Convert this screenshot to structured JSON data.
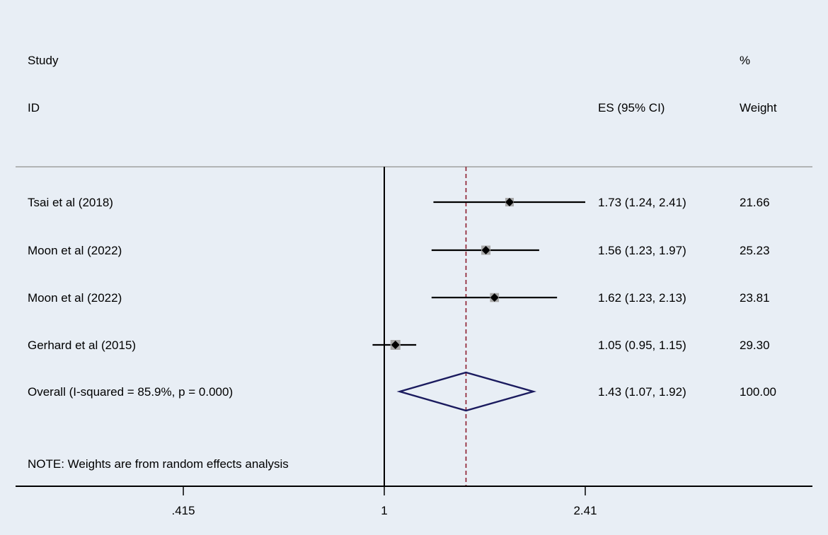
{
  "chart_data": {
    "type": "forest",
    "scale": "log",
    "header": {
      "study_line1": "Study",
      "study_line2": "ID",
      "es_label": "ES (95% CI)",
      "weight_line1": "%",
      "weight_line2": "Weight"
    },
    "studies": [
      {
        "id": "Tsai et al (2018)",
        "es": 1.73,
        "lo": 1.24,
        "hi": 2.41,
        "es_text": "1.73 (1.24, 2.41)",
        "weight": 21.66,
        "weight_text": "21.66"
      },
      {
        "id": "Moon et al (2022)",
        "es": 1.56,
        "lo": 1.23,
        "hi": 1.97,
        "es_text": "1.56 (1.23, 1.97)",
        "weight": 25.23,
        "weight_text": "25.23"
      },
      {
        "id": "Moon et al (2022)",
        "es": 1.62,
        "lo": 1.23,
        "hi": 2.13,
        "es_text": "1.62 (1.23, 2.13)",
        "weight": 23.81,
        "weight_text": "23.81"
      },
      {
        "id": "Gerhard et al (2015)",
        "es": 1.05,
        "lo": 0.95,
        "hi": 1.15,
        "es_text": "1.05 (0.95, 1.15)",
        "weight": 29.3,
        "weight_text": "29.30"
      }
    ],
    "overall": {
      "label": "Overall  (I-squared = 85.9%, p = 0.000)",
      "es": 1.43,
      "lo": 1.07,
      "hi": 1.92,
      "es_text": "1.43 (1.07, 1.92)",
      "weight_text": "100.00"
    },
    "note": "NOTE: Weights are from random effects analysis",
    "xticks": [
      {
        "value": 0.415,
        "label": ".415"
      },
      {
        "value": 1,
        "label": "1"
      },
      {
        "value": 2.41,
        "label": "2.41"
      }
    ],
    "xlim": [
      0.415,
      2.41
    ],
    "null_line": 1,
    "colors": {
      "background": "#e8eef5",
      "diamond": "#1a1a5e",
      "overall_line": "#8b1a2b",
      "marker_box": "#a8a8a8",
      "ci_line": "#000000"
    }
  }
}
